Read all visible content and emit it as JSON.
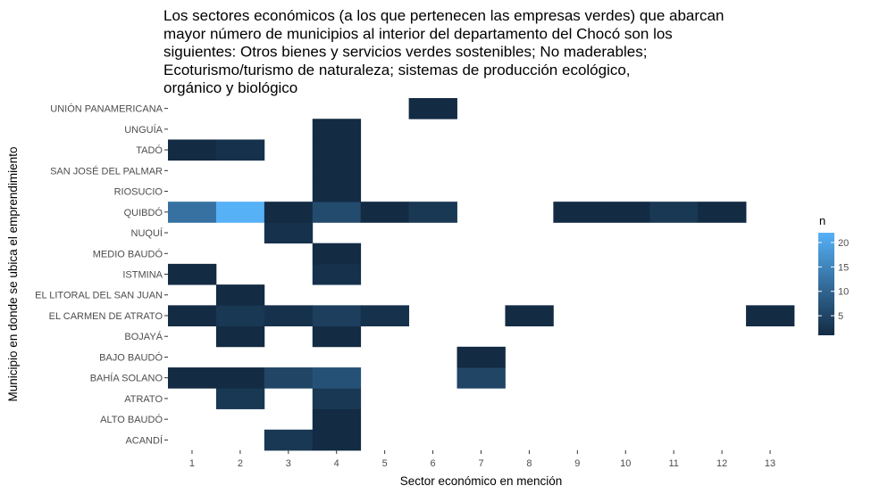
{
  "chart_data": {
    "type": "heatmap",
    "title_lines": [
      "Los sectores económicos (a los que pertenecen las empresas verdes) que abarcan",
      "mayor número de municipios al interior del departamento del Chocó son los",
      "siguientes: Otros bienes y servicios verdes sostenibles; No maderables;",
      "Ecoturismo/turismo de naturaleza; sistemas de producción ecológico,",
      "orgánico y biológico"
    ],
    "xlabel": "Sector económico en mención",
    "ylabel": "Municipio en donde se ubica el emprendimiento",
    "x_categories": [
      "1",
      "2",
      "3",
      "4",
      "5",
      "6",
      "7",
      "8",
      "9",
      "10",
      "11",
      "12",
      "13"
    ],
    "y_categories": [
      "ACANDÍ",
      "ALTO BAUDÓ",
      "ATRATO",
      "BAHÍA SOLANO",
      "BAJO BAUDÓ",
      "BOJAYÁ",
      "EL CARMEN DE ATRATO",
      "EL LITORAL DEL SAN JUAN",
      "ISTMINA",
      "MEDIO BAUDÓ",
      "NUQUÍ",
      "QUIBDÓ",
      "RIOSUCIO",
      "SAN JOSÉ DEL PALMAR",
      "TADÓ",
      "UNGUÍA",
      "UNIÓN PANAMERICANA"
    ],
    "cells": [
      {
        "x": "3",
        "y": "ACANDÍ",
        "n": 3
      },
      {
        "x": "4",
        "y": "ACANDÍ",
        "n": 1
      },
      {
        "x": "4",
        "y": "ALTO BAUDÓ",
        "n": 1
      },
      {
        "x": "2",
        "y": "ATRATO",
        "n": 3
      },
      {
        "x": "4",
        "y": "ATRATO",
        "n": 3
      },
      {
        "x": "1",
        "y": "BAHÍA SOLANO",
        "n": 1
      },
      {
        "x": "2",
        "y": "BAHÍA SOLANO",
        "n": 1
      },
      {
        "x": "3",
        "y": "BAHÍA SOLANO",
        "n": 5
      },
      {
        "x": "4",
        "y": "BAHÍA SOLANO",
        "n": 7
      },
      {
        "x": "7",
        "y": "BAHÍA SOLANO",
        "n": 5
      },
      {
        "x": "7",
        "y": "BAJO BAUDÓ",
        "n": 1
      },
      {
        "x": "2",
        "y": "BOJAYÁ",
        "n": 1
      },
      {
        "x": "4",
        "y": "BOJAYÁ",
        "n": 1
      },
      {
        "x": "1",
        "y": "EL CARMEN DE ATRATO",
        "n": 1
      },
      {
        "x": "2",
        "y": "EL CARMEN DE ATRATO",
        "n": 3
      },
      {
        "x": "3",
        "y": "EL CARMEN DE ATRATO",
        "n": 2
      },
      {
        "x": "4",
        "y": "EL CARMEN DE ATRATO",
        "n": 4
      },
      {
        "x": "5",
        "y": "EL CARMEN DE ATRATO",
        "n": 2
      },
      {
        "x": "8",
        "y": "EL CARMEN DE ATRATO",
        "n": 1
      },
      {
        "x": "13",
        "y": "EL CARMEN DE ATRATO",
        "n": 1
      },
      {
        "x": "2",
        "y": "EL LITORAL DEL SAN JUAN",
        "n": 1
      },
      {
        "x": "1",
        "y": "ISTMINA",
        "n": 1
      },
      {
        "x": "4",
        "y": "ISTMINA",
        "n": 2
      },
      {
        "x": "4",
        "y": "MEDIO BAUDÓ",
        "n": 1
      },
      {
        "x": "3",
        "y": "NUQUÍ",
        "n": 2
      },
      {
        "x": "1",
        "y": "QUIBDÓ",
        "n": 12
      },
      {
        "x": "2",
        "y": "QUIBDÓ",
        "n": 22
      },
      {
        "x": "3",
        "y": "QUIBDÓ",
        "n": 1
      },
      {
        "x": "4",
        "y": "QUIBDÓ",
        "n": 6
      },
      {
        "x": "5",
        "y": "QUIBDÓ",
        "n": 1
      },
      {
        "x": "6",
        "y": "QUIBDÓ",
        "n": 3
      },
      {
        "x": "9",
        "y": "QUIBDÓ",
        "n": 1
      },
      {
        "x": "10",
        "y": "QUIBDÓ",
        "n": 1
      },
      {
        "x": "11",
        "y": "QUIBDÓ",
        "n": 3
      },
      {
        "x": "12",
        "y": "QUIBDÓ",
        "n": 1
      },
      {
        "x": "4",
        "y": "RIOSUCIO",
        "n": 1
      },
      {
        "x": "4",
        "y": "SAN JOSÉ DEL PALMAR",
        "n": 1
      },
      {
        "x": "1",
        "y": "TADÓ",
        "n": 1
      },
      {
        "x": "2",
        "y": "TADÓ",
        "n": 2
      },
      {
        "x": "4",
        "y": "TADÓ",
        "n": 1
      },
      {
        "x": "4",
        "y": "UNGUÍA",
        "n": 1
      },
      {
        "x": "6",
        "y": "UNIÓN PANAMERICANA",
        "n": 1
      }
    ],
    "legend": {
      "title": "n",
      "ticks": [
        5,
        10,
        15,
        20
      ],
      "range": [
        1,
        22
      ],
      "colors": {
        "low": "#132B43",
        "high": "#56B1F7"
      }
    }
  }
}
